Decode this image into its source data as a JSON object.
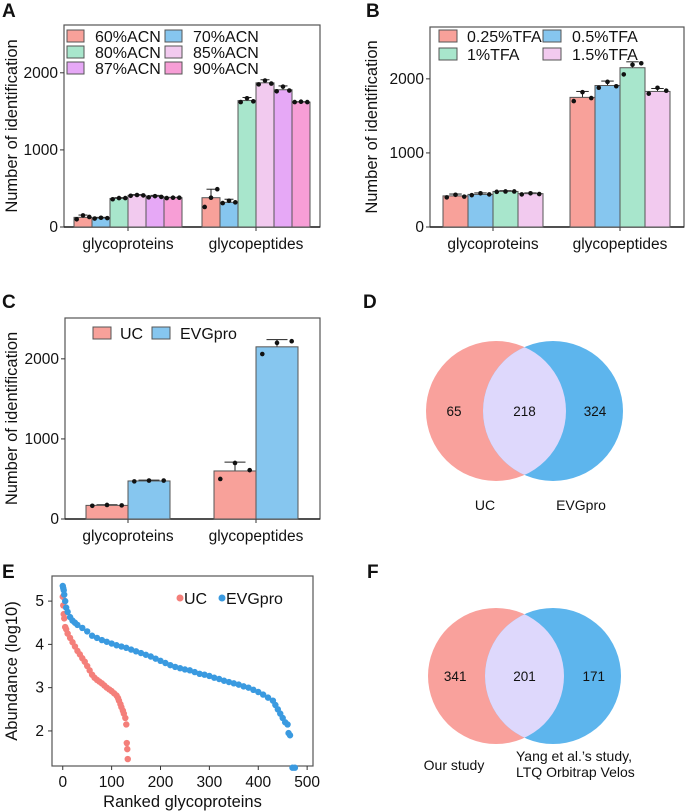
{
  "panels": {
    "A": "A",
    "B": "B",
    "C": "C",
    "D": "D",
    "E": "E",
    "F": "F"
  },
  "chart_data": [
    {
      "id": "A",
      "type": "bar",
      "ylabel": "Number of identification",
      "categories": [
        "glycoproteins",
        "glycopeptides"
      ],
      "ylim": [
        0,
        2620
      ],
      "yticks": [
        0,
        1000,
        2000
      ],
      "series": [
        {
          "name": "60%ACN",
          "color": "#f8a19a",
          "values": [
            125,
            380
          ],
          "err": [
            30,
            110
          ],
          "points": [
            [
              100,
              150,
              130
            ],
            [
              260,
              380,
              490
            ]
          ]
        },
        {
          "name": "70%ACN",
          "color": "#86c6ef",
          "values": [
            115,
            320
          ],
          "err": [
            10,
            40
          ],
          "points": [
            [
              110,
              120,
              115
            ],
            [
              310,
              340,
              320
            ]
          ]
        },
        {
          "name": "80%ACN",
          "color": "#a8e6cc",
          "values": [
            370,
            1640
          ],
          "err": [
            10,
            40
          ],
          "points": [
            [
              360,
              375,
              375
            ],
            [
              1620,
              1670,
              1630
            ]
          ]
        },
        {
          "name": "85%ACN",
          "color": "#f2caef",
          "values": [
            410,
            1870
          ],
          "err": [
            10,
            40
          ],
          "points": [
            [
              405,
              415,
              410
            ],
            [
              1850,
              1900,
              1860
            ]
          ]
        },
        {
          "name": "87%ACN",
          "color": "#e6a8f6",
          "values": [
            395,
            1780
          ],
          "err": [
            15,
            50
          ],
          "points": [
            [
              385,
              400,
              390
            ],
            [
              1760,
              1820,
              1770
            ]
          ]
        },
        {
          "name": "90%ACN",
          "color": "#f79ed6",
          "values": [
            380,
            1620
          ],
          "err": [
            5,
            5
          ],
          "points": [
            [
              375,
              380,
              380
            ],
            [
              1620,
              1625,
              1620
            ]
          ]
        }
      ]
    },
    {
      "id": "B",
      "type": "bar",
      "ylabel": "Number of identification",
      "categories": [
        "glycoproteins",
        "glycopeptides"
      ],
      "ylim": [
        0,
        2700
      ],
      "yticks": [
        0,
        1000,
        2000
      ],
      "series": [
        {
          "name": "0.25%TFA",
          "color": "#f8a19a",
          "values": [
            420,
            1750
          ],
          "err": [
            25,
            80
          ],
          "points": [
            [
              400,
              435,
              410
            ],
            [
              1700,
              1820,
              1740
            ]
          ]
        },
        {
          "name": "0.5%TFA",
          "color": "#86c6ef",
          "values": [
            440,
            1910
          ],
          "err": [
            20,
            60
          ],
          "points": [
            [
              430,
              455,
              440
            ],
            [
              1880,
              1960,
              1900
            ]
          ]
        },
        {
          "name": "1%TFA",
          "color": "#a8e6cc",
          "values": [
            480,
            2150
          ],
          "err": [
            10,
            80
          ],
          "points": [
            [
              475,
              480,
              480
            ],
            [
              2060,
              2190,
              2210
            ]
          ]
        },
        {
          "name": "1.5%TFA",
          "color": "#f2caef",
          "values": [
            450,
            1830
          ],
          "err": [
            10,
            40
          ],
          "points": [
            [
              440,
              455,
              445
            ],
            [
              1800,
              1880,
              1840
            ]
          ]
        }
      ]
    },
    {
      "id": "C",
      "type": "bar",
      "ylabel": "Number of identification",
      "categories": [
        "glycoproteins",
        "glycopeptides"
      ],
      "ylim": [
        0,
        2510
      ],
      "yticks": [
        0,
        1000,
        2000
      ],
      "series": [
        {
          "name": "UC",
          "color": "#f8a19a",
          "values": [
            170,
            600
          ],
          "err": [
            8,
            110
          ],
          "points": [
            [
              165,
              175,
              170
            ],
            [
              500,
              700,
              610
            ]
          ]
        },
        {
          "name": "EVGpro",
          "color": "#86c6ef",
          "values": [
            475,
            2150
          ],
          "err": [
            10,
            90
          ],
          "points": [
            [
              470,
              480,
              480
            ],
            [
              2060,
              2200,
              2220
            ]
          ]
        }
      ]
    },
    {
      "id": "D",
      "type": "venn",
      "sets": [
        {
          "label": "UC",
          "color": "#f9a19c"
        },
        {
          "label": "EVGpro",
          "color": "#5db5ed"
        }
      ],
      "overlap_color": "#ded8fc",
      "values": {
        "left_only": "65",
        "both": "218",
        "right_only": "324"
      }
    },
    {
      "id": "E",
      "type": "scatter",
      "xlabel": "Ranked glycoproteins",
      "ylabel": "Abundance (log10)",
      "xlim": [
        -22,
        512
      ],
      "ylim": [
        1.19,
        5.58
      ],
      "xticks": [
        0,
        100,
        200,
        300,
        400,
        500
      ],
      "yticks": [
        2,
        3,
        4,
        5
      ],
      "legend": "top-right",
      "series": [
        {
          "name": "UC",
          "color": "#f47f7a",
          "points": [
            [
              0,
              5.1
            ],
            [
              1,
              4.9
            ],
            [
              2,
              4.7
            ],
            [
              3,
              4.6
            ],
            [
              5,
              4.4
            ],
            [
              7,
              4.35
            ],
            [
              10,
              4.25
            ],
            [
              15,
              4.15
            ],
            [
              20,
              4.05
            ],
            [
              25,
              3.95
            ],
            [
              30,
              3.85
            ],
            [
              35,
              3.77
            ],
            [
              40,
              3.68
            ],
            [
              45,
              3.6
            ],
            [
              50,
              3.5
            ],
            [
              55,
              3.4
            ],
            [
              60,
              3.3
            ],
            [
              65,
              3.23
            ],
            [
              70,
              3.18
            ],
            [
              75,
              3.14
            ],
            [
              80,
              3.1
            ],
            [
              85,
              3.05
            ],
            [
              90,
              3.0
            ],
            [
              95,
              2.96
            ],
            [
              100,
              2.92
            ],
            [
              105,
              2.87
            ],
            [
              110,
              2.82
            ],
            [
              113,
              2.76
            ],
            [
              115,
              2.7
            ],
            [
              118,
              2.62
            ],
            [
              120,
              2.55
            ],
            [
              123,
              2.47
            ],
            [
              125,
              2.4
            ],
            [
              128,
              2.3
            ],
            [
              130,
              2.15
            ],
            [
              131,
              1.72
            ],
            [
              132,
              1.58
            ],
            [
              133,
              1.35
            ]
          ]
        },
        {
          "name": "EVGpro",
          "color": "#3a9ae0",
          "points": [
            [
              0,
              5.35
            ],
            [
              1,
              5.3
            ],
            [
              2,
              5.25
            ],
            [
              3,
              5.15
            ],
            [
              5,
              5.0
            ],
            [
              7,
              4.85
            ],
            [
              10,
              4.75
            ],
            [
              15,
              4.63
            ],
            [
              20,
              4.55
            ],
            [
              25,
              4.5
            ],
            [
              30,
              4.45
            ],
            [
              40,
              4.38
            ],
            [
              50,
              4.3
            ],
            [
              60,
              4.2
            ],
            [
              70,
              4.15
            ],
            [
              80,
              4.1
            ],
            [
              90,
              4.06
            ],
            [
              100,
              4.02
            ],
            [
              110,
              3.98
            ],
            [
              120,
              3.95
            ],
            [
              130,
              3.92
            ],
            [
              140,
              3.88
            ],
            [
              150,
              3.84
            ],
            [
              160,
              3.8
            ],
            [
              170,
              3.76
            ],
            [
              180,
              3.72
            ],
            [
              190,
              3.67
            ],
            [
              200,
              3.62
            ],
            [
              210,
              3.57
            ],
            [
              220,
              3.52
            ],
            [
              230,
              3.48
            ],
            [
              240,
              3.45
            ],
            [
              250,
              3.42
            ],
            [
              260,
              3.4
            ],
            [
              270,
              3.36
            ],
            [
              280,
              3.32
            ],
            [
              290,
              3.3
            ],
            [
              300,
              3.27
            ],
            [
              310,
              3.23
            ],
            [
              320,
              3.2
            ],
            [
              330,
              3.16
            ],
            [
              340,
              3.13
            ],
            [
              350,
              3.1
            ],
            [
              360,
              3.07
            ],
            [
              370,
              3.03
            ],
            [
              380,
              3.0
            ],
            [
              390,
              2.95
            ],
            [
              400,
              2.9
            ],
            [
              410,
              2.84
            ],
            [
              420,
              2.77
            ],
            [
              430,
              2.7
            ],
            [
              435,
              2.6
            ],
            [
              440,
              2.5
            ],
            [
              445,
              2.4
            ],
            [
              450,
              2.3
            ],
            [
              455,
              2.2
            ],
            [
              460,
              2.15
            ],
            [
              462,
              1.95
            ],
            [
              465,
              1.9
            ],
            [
              470,
              1.15
            ],
            [
              475,
              1.15
            ]
          ]
        }
      ]
    },
    {
      "id": "F",
      "type": "venn",
      "sets": [
        {
          "label": "Our study",
          "color": "#f9a19c"
        },
        {
          "label_lines": [
            "Yang et al.’s study,",
            "LTQ Orbitrap Velos"
          ],
          "color": "#5db5ed"
        }
      ],
      "overlap_color": "#ded8fc",
      "values": {
        "left_only": "341",
        "both": "201",
        "right_only": "171"
      }
    }
  ]
}
